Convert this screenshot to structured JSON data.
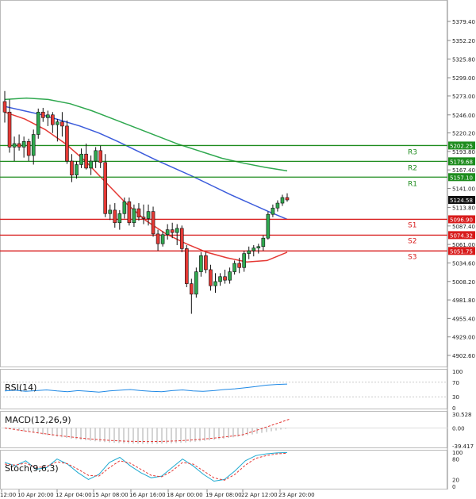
{
  "chart_data": {
    "type": "candlestick",
    "price_axis": {
      "ticks": [
        "5379.40",
        "5352.20",
        "5325.80",
        "5299.00",
        "5273.00",
        "5246.00",
        "5220.20",
        "5193.80",
        "5167.40",
        "5141.00",
        "5113.80",
        "5087.40",
        "5061.00",
        "5034.60",
        "5008.20",
        "4981.80",
        "4955.40",
        "4929.00",
        "4902.60"
      ],
      "range": [
        4895,
        5400
      ]
    },
    "time_axis": {
      "labels": [
        "12:00",
        "10 Apr 20:00",
        "12 Apr 04:00",
        "15 Apr 08:00",
        "16 Apr 16:00",
        "18 Apr 00:00",
        "19 Apr 08:00",
        "22 Apr 12:00",
        "23 Apr 20:00"
      ]
    },
    "candles": [
      [
        5265,
        5280,
        5235,
        5250
      ],
      [
        5250,
        5268,
        5192,
        5200
      ],
      [
        5200,
        5215,
        5180,
        5205
      ],
      [
        5205,
        5218,
        5195,
        5200
      ],
      [
        5200,
        5215,
        5185,
        5208
      ],
      [
        5208,
        5212,
        5180,
        5188
      ],
      [
        5188,
        5225,
        5175,
        5218
      ],
      [
        5218,
        5255,
        5212,
        5250
      ],
      [
        5250,
        5256,
        5236,
        5242
      ],
      [
        5242,
        5252,
        5230,
        5246
      ],
      [
        5246,
        5250,
        5220,
        5232
      ],
      [
        5232,
        5240,
        5208,
        5236
      ],
      [
        5236,
        5250,
        5215,
        5230
      ],
      [
        5230,
        5238,
        5176,
        5180
      ],
      [
        5180,
        5190,
        5150,
        5160
      ],
      [
        5160,
        5180,
        5155,
        5175
      ],
      [
        5175,
        5198,
        5170,
        5190
      ],
      [
        5190,
        5205,
        5168,
        5170
      ],
      [
        5170,
        5188,
        5160,
        5180
      ],
      [
        5180,
        5200,
        5170,
        5195
      ],
      [
        5195,
        5202,
        5170,
        5178
      ],
      [
        5178,
        5190,
        5100,
        5105
      ],
      [
        5105,
        5118,
        5096,
        5110
      ],
      [
        5110,
        5120,
        5085,
        5092
      ],
      [
        5092,
        5110,
        5082,
        5105
      ],
      [
        5105,
        5128,
        5098,
        5122
      ],
      [
        5122,
        5128,
        5088,
        5092
      ],
      [
        5092,
        5118,
        5086,
        5112
      ],
      [
        5112,
        5120,
        5095,
        5100
      ],
      [
        5100,
        5118,
        5090,
        5098
      ],
      [
        5098,
        5118,
        5088,
        5108
      ],
      [
        5108,
        5115,
        5072,
        5076
      ],
      [
        5076,
        5082,
        5052,
        5062
      ],
      [
        5062,
        5080,
        5058,
        5075
      ],
      [
        5075,
        5090,
        5068,
        5082
      ],
      [
        5082,
        5092,
        5070,
        5078
      ],
      [
        5078,
        5090,
        5060,
        5084
      ],
      [
        5084,
        5088,
        5050,
        5055
      ],
      [
        5055,
        5060,
        5000,
        5005
      ],
      [
        5005,
        5012,
        4962,
        4990
      ],
      [
        4990,
        5028,
        4985,
        5022
      ],
      [
        5022,
        5050,
        5015,
        5045
      ],
      [
        5045,
        5050,
        5020,
        5025
      ],
      [
        5025,
        5032,
        4995,
        5002
      ],
      [
        5002,
        5020,
        4992,
        5008
      ],
      [
        5008,
        5020,
        5002,
        5015
      ],
      [
        5015,
        5025,
        5005,
        5010
      ],
      [
        5010,
        5028,
        5005,
        5022
      ],
      [
        5022,
        5038,
        5018,
        5034
      ],
      [
        5034,
        5042,
        5020,
        5028
      ],
      [
        5028,
        5052,
        5022,
        5048
      ],
      [
        5048,
        5058,
        5040,
        5052
      ],
      [
        5052,
        5060,
        5044,
        5056
      ],
      [
        5056,
        5062,
        5048,
        5058
      ],
      [
        5058,
        5074,
        5052,
        5070
      ],
      [
        5070,
        5108,
        5068,
        5104
      ],
      [
        5104,
        5118,
        5100,
        5113
      ],
      [
        5113,
        5124,
        5108,
        5120
      ],
      [
        5120,
        5132,
        5116,
        5128
      ],
      [
        5128,
        5134,
        5122,
        5124.58
      ]
    ],
    "moving_averages": [
      {
        "color": "#3b5bdb",
        "values": [
          5258,
          5252,
          5246,
          5238,
          5230,
          5220,
          5208,
          5195,
          5182,
          5170,
          5158,
          5145,
          5132,
          5120,
          5108,
          5097
        ]
      },
      {
        "color": "#2fa84f",
        "values": [
          5268,
          5270,
          5268,
          5262,
          5252,
          5240,
          5228,
          5216,
          5204,
          5194,
          5184,
          5177,
          5171,
          5166
        ]
      },
      {
        "color": "#e53935",
        "values": [
          5250,
          5240,
          5225,
          5205,
          5180,
          5150,
          5120,
          5095,
          5076,
          5062,
          5050,
          5042,
          5036,
          5038,
          5050
        ]
      }
    ],
    "levels": [
      {
        "name": "R3",
        "value": "5202.25",
        "color": "#1e8c1e"
      },
      {
        "name": "R2",
        "value": "5179.68",
        "color": "#1e8c1e"
      },
      {
        "name": "R1",
        "value": "5157.10",
        "color": "#1e8c1e"
      },
      {
        "name": "S1",
        "value": "5096.90",
        "color": "#d81b1b"
      },
      {
        "name": "S2",
        "value": "5074.32",
        "color": "#d81b1b"
      },
      {
        "name": "S3",
        "value": "5051.75",
        "color": "#d81b1b"
      }
    ],
    "last_price": "5124.58",
    "indicators": {
      "rsi": {
        "title": "RSI(14)",
        "ticks": [
          "100",
          "70",
          "30",
          "0"
        ],
        "values": [
          46,
          48,
          45,
          47,
          49,
          46,
          44,
          47,
          45,
          43,
          46,
          48,
          50,
          47,
          45,
          44,
          47,
          49,
          46,
          45,
          47,
          50,
          52,
          55,
          58,
          62,
          64,
          65
        ]
      },
      "macd": {
        "title": "MACD(12,26,9)",
        "ticks": [
          "30.528",
          "0.00",
          "-39.417"
        ]
      },
      "stoch": {
        "title": "Stoch(9,6,3)",
        "ticks": [
          "100",
          "80",
          "20",
          "0"
        ],
        "k": [
          70,
          60,
          75,
          50,
          55,
          80,
          65,
          40,
          20,
          35,
          70,
          85,
          60,
          40,
          25,
          30,
          55,
          80,
          60,
          35,
          15,
          20,
          45,
          75,
          90,
          95,
          98,
          99
        ],
        "d": [
          65,
          62,
          68,
          55,
          58,
          72,
          66,
          50,
          32,
          30,
          55,
          75,
          68,
          50,
          32,
          28,
          45,
          70,
          65,
          45,
          25,
          18,
          35,
          62,
          82,
          90,
          95,
          97
        ]
      }
    },
    "colors": {
      "bull": "#2fa84f",
      "bear": "#e53935"
    }
  }
}
